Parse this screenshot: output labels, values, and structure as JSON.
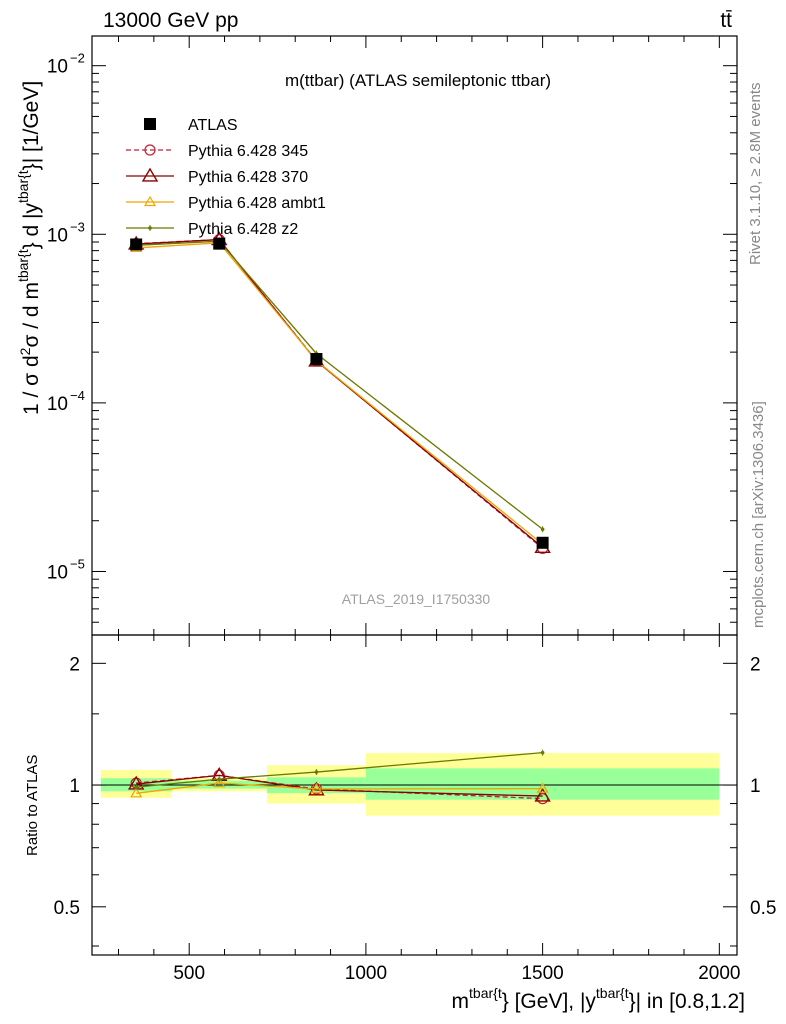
{
  "header": {
    "left": "13000 GeV pp",
    "right": "tt̄"
  },
  "side": {
    "rivet": "Rivet 3.1.10, ≥ 2.8M events",
    "mcplots": "mcplots.cern.ch [arXiv:1306.3436]"
  },
  "chart_data": {
    "type": "line",
    "title": "m(ttbar) (ATLAS semileptonic ttbar)",
    "watermark": "ATLAS_2019_I1750330",
    "xlabel": {
      "base": "m",
      "sup1": "tbar{t",
      "mid": "} [GeV], |y",
      "sup2": "tbar{t",
      "tail": "}| in [0.8,1.2]"
    },
    "ylabel": {
      "p1": "1 / σ d",
      "sup1": "2",
      "p2": "σ / d m",
      "sup2": "tbar{t",
      "p3": "} d |y",
      "sup3": "tbar{t",
      "p4": "}| [1/GeV]"
    },
    "ratio_ylabel": "Ratio to ATLAS",
    "xlim": [
      225,
      2050
    ],
    "ylim": [
      4.2e-06,
      0.015
    ],
    "yscale": "log",
    "ratio_ylim": [
      0.38,
      2.35
    ],
    "ratio_yscale": "log",
    "x_ticks": [
      {
        "v": 500,
        "label": "500"
      },
      {
        "v": 1000,
        "label": "1000"
      },
      {
        "v": 1500,
        "label": "1500"
      },
      {
        "v": 2000,
        "label": "2000"
      }
    ],
    "y_ticks": [
      {
        "v": 1e-05,
        "m": "10",
        "e": "−5"
      },
      {
        "v": 0.0001,
        "m": "10",
        "e": "−4"
      },
      {
        "v": 0.001,
        "m": "10",
        "e": "−3"
      },
      {
        "v": 0.01,
        "m": "10",
        "e": "−2"
      }
    ],
    "ratio_ticks": [
      {
        "v": 0.5,
        "label": "0.5"
      },
      {
        "v": 1,
        "label": "1"
      },
      {
        "v": 2,
        "label": "2"
      }
    ],
    "bins": [
      [
        250,
        450
      ],
      [
        450,
        720
      ],
      [
        720,
        1000
      ],
      [
        1000,
        2000
      ]
    ],
    "x": [
      350,
      585,
      860,
      1500
    ],
    "data": {
      "name": "ATLAS",
      "values": [
        0.00087,
        0.00088,
        0.000182,
        1.48e-05
      ]
    },
    "band_inner": [
      [
        0.965,
        1.04
      ],
      [
        0.98,
        1.025
      ],
      [
        0.955,
        1.045
      ],
      [
        0.92,
        1.1
      ]
    ],
    "band_outer": [
      [
        0.93,
        1.09
      ],
      [
        0.965,
        1.04
      ],
      [
        0.9,
        1.12
      ],
      [
        0.84,
        1.2
      ]
    ],
    "series": [
      {
        "name": "Pythia 6.428 345",
        "values": [
          0.00088,
          0.00093,
          0.000178,
          1.37e-05
        ],
        "color": "#c0203a",
        "dash": "5,3",
        "marker": "circle"
      },
      {
        "name": "Pythia 6.428 370",
        "values": [
          0.000875,
          0.00093,
          0.000177,
          1.39e-05
        ],
        "color": "#8b0000",
        "dash": "",
        "marker": "triangle"
      },
      {
        "name": "Pythia 6.428 ambt1",
        "values": [
          0.00083,
          0.00089,
          0.000178,
          1.45e-05
        ],
        "color": "#f0a500",
        "dash": "",
        "marker": "triangle-small"
      },
      {
        "name": "Pythia 6.428 z2",
        "values": [
          0.00086,
          0.00091,
          0.000196,
          1.78e-05
        ],
        "color": "#6b7a00",
        "dash": "",
        "marker": "dot"
      }
    ]
  }
}
